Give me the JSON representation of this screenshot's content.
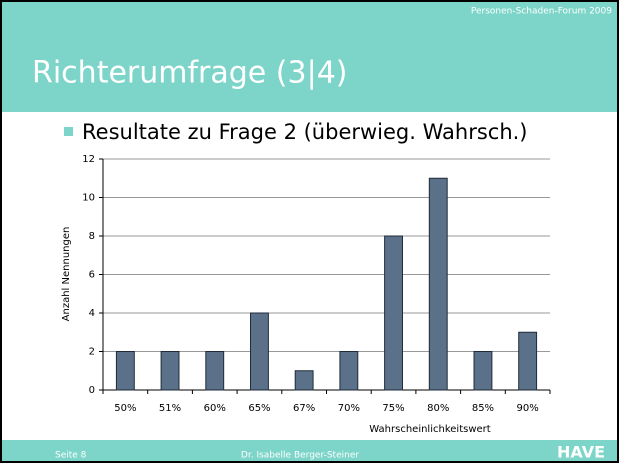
{
  "header": {
    "event": "Personen-Schaden-Forum 2009",
    "title": "Richterumfrage (3|4)"
  },
  "bullet": "Resultate zu Frage 2 (überwieg. Wahrsch.)",
  "footer": {
    "page": "Seite 8",
    "author": "Dr. Isabelle Berger-Steiner",
    "logo": "HAVE"
  },
  "chart_data": {
    "type": "bar",
    "x_label": "Wahrscheinlichkeitswert",
    "y_label": "Anzahl Nennungen",
    "categories": [
      "50%",
      "51%",
      "60%",
      "65%",
      "67%",
      "70%",
      "75%",
      "80%",
      "85%",
      "90%"
    ],
    "values": [
      2,
      2,
      2,
      4,
      1,
      2,
      8,
      11,
      2,
      3
    ],
    "color": "#5b7189",
    "ylim": [
      0,
      12
    ],
    "yticks": [
      0,
      2,
      4,
      6,
      8,
      10,
      12
    ],
    "grid": true
  }
}
